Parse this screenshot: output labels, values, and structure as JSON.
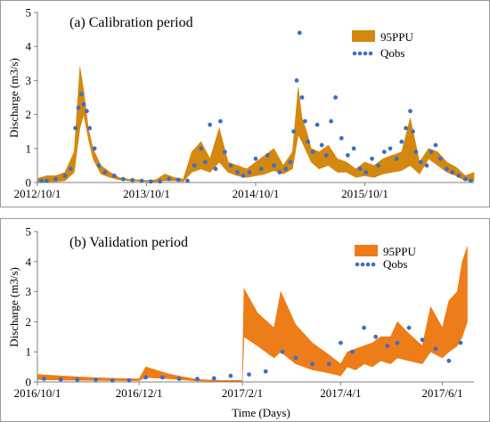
{
  "chart_data": [
    {
      "type": "area",
      "title": "(a) Calibration period",
      "ylabel": "Discharge (m3/s)",
      "xlabel": "",
      "ylim": [
        0,
        5
      ],
      "yticks": [
        "0",
        "1",
        "2",
        "3",
        "4",
        "5"
      ],
      "xlim": [
        "2012-10-01",
        "2016-09-30"
      ],
      "xtick_labels": [
        "2012/10/1",
        "2013/10/1",
        "2014/10/1",
        "2015/10/1"
      ],
      "xtick_dates": [
        "2012-10-01",
        "2013-10-01",
        "2014-10-01",
        "2015-10-01"
      ],
      "legend_position": "top-right",
      "grid": false,
      "series": [
        {
          "name": "95PPU",
          "kind": "band",
          "color": "#d4880f",
          "dates": [
            "2012-10-01",
            "2012-11-01",
            "2012-12-01",
            "2013-01-01",
            "2013-02-01",
            "2013-02-20",
            "2013-03-05",
            "2013-03-20",
            "2013-04-05",
            "2013-05-01",
            "2013-06-01",
            "2013-07-01",
            "2013-08-01",
            "2013-09-01",
            "2013-10-01",
            "2013-11-01",
            "2013-12-01",
            "2014-01-01",
            "2014-02-01",
            "2014-03-01",
            "2014-04-01",
            "2014-05-01",
            "2014-06-01",
            "2014-07-01",
            "2014-08-01",
            "2014-09-01",
            "2014-10-01",
            "2014-11-01",
            "2014-12-01",
            "2015-01-01",
            "2015-02-01",
            "2015-02-20",
            "2015-03-05",
            "2015-03-20",
            "2015-04-05",
            "2015-05-01",
            "2015-06-01",
            "2015-07-01",
            "2015-08-01",
            "2015-09-01",
            "2015-10-01",
            "2015-11-01",
            "2015-12-01",
            "2016-01-01",
            "2016-02-01",
            "2016-03-01",
            "2016-04-01",
            "2016-05-01",
            "2016-06-01",
            "2016-07-01",
            "2016-08-01",
            "2016-09-01",
            "2016-09-30"
          ],
          "lower": [
            0.02,
            0.02,
            0.03,
            0.05,
            0.3,
            1.6,
            2.0,
            1.3,
            0.7,
            0.25,
            0.15,
            0.08,
            0.05,
            0.04,
            0.03,
            0.02,
            0.05,
            0.05,
            0.03,
            0.3,
            0.4,
            0.3,
            0.6,
            0.3,
            0.2,
            0.15,
            0.2,
            0.25,
            0.35,
            0.25,
            0.4,
            1.4,
            1.2,
            0.9,
            0.6,
            0.4,
            0.5,
            0.3,
            0.3,
            0.15,
            0.2,
            0.15,
            0.25,
            0.3,
            0.35,
            0.5,
            0.25,
            0.7,
            0.5,
            0.3,
            0.2,
            0.05,
            0.05
          ],
          "upper": [
            0.12,
            0.2,
            0.2,
            0.3,
            0.9,
            3.4,
            2.7,
            1.6,
            1.0,
            0.5,
            0.3,
            0.15,
            0.1,
            0.08,
            0.06,
            0.08,
            0.25,
            0.15,
            0.1,
            0.9,
            1.2,
            0.7,
            1.6,
            0.6,
            0.5,
            0.4,
            0.6,
            0.8,
            1.0,
            0.5,
            0.9,
            2.8,
            1.9,
            1.5,
            1.0,
            0.9,
            1.1,
            0.7,
            0.6,
            0.4,
            0.6,
            0.5,
            0.7,
            0.8,
            0.9,
            1.9,
            0.6,
            1.0,
            0.9,
            0.6,
            0.45,
            0.2,
            0.3
          ]
        },
        {
          "name": "Qobs",
          "kind": "points",
          "color": "#3b6fc4",
          "dates": [
            "2012-10-15",
            "2012-11-01",
            "2012-12-01",
            "2013-01-01",
            "2013-01-20",
            "2013-02-05",
            "2013-02-15",
            "2013-02-25",
            "2013-03-05",
            "2013-03-15",
            "2013-03-25",
            "2013-04-10",
            "2013-04-25",
            "2013-05-15",
            "2013-06-15",
            "2013-07-15",
            "2013-08-15",
            "2013-09-15",
            "2013-10-15",
            "2013-11-15",
            "2013-12-15",
            "2014-01-15",
            "2014-02-15",
            "2014-03-10",
            "2014-04-01",
            "2014-04-15",
            "2014-05-01",
            "2014-05-20",
            "2014-06-05",
            "2014-06-20",
            "2014-07-10",
            "2014-08-01",
            "2014-08-20",
            "2014-09-10",
            "2014-10-01",
            "2014-10-20",
            "2014-11-10",
            "2014-12-01",
            "2014-12-20",
            "2015-01-10",
            "2015-01-25",
            "2015-02-05",
            "2015-02-15",
            "2015-02-25",
            "2015-03-05",
            "2015-03-15",
            "2015-03-25",
            "2015-04-10",
            "2015-04-25",
            "2015-05-10",
            "2015-05-25",
            "2015-06-10",
            "2015-06-25",
            "2015-07-15",
            "2015-08-05",
            "2015-08-25",
            "2015-09-15",
            "2015-10-05",
            "2015-10-25",
            "2015-11-15",
            "2015-12-05",
            "2015-12-25",
            "2016-01-15",
            "2016-02-01",
            "2016-02-15",
            "2016-03-01",
            "2016-03-10",
            "2016-03-20",
            "2016-04-05",
            "2016-04-25",
            "2016-05-10",
            "2016-05-25",
            "2016-06-10",
            "2016-07-01",
            "2016-07-20",
            "2016-08-10",
            "2016-09-01",
            "2016-09-20"
          ],
          "values": [
            0.05,
            0.05,
            0.1,
            0.2,
            0.4,
            1.6,
            2.2,
            2.6,
            2.3,
            2.1,
            1.6,
            1.0,
            0.5,
            0.3,
            0.2,
            0.1,
            0.07,
            0.05,
            0.03,
            0.03,
            0.1,
            0.08,
            0.05,
            0.5,
            1.0,
            0.6,
            1.7,
            0.4,
            1.8,
            0.9,
            0.5,
            0.3,
            0.2,
            0.3,
            0.7,
            0.4,
            0.8,
            0.5,
            0.3,
            0.4,
            0.6,
            1.5,
            3.0,
            4.4,
            2.5,
            1.8,
            1.2,
            0.9,
            1.7,
            1.1,
            0.8,
            1.8,
            2.5,
            1.3,
            0.8,
            1.0,
            0.4,
            0.3,
            0.7,
            0.5,
            0.9,
            1.0,
            0.7,
            1.2,
            1.6,
            2.1,
            1.5,
            0.9,
            0.6,
            0.5,
            0.9,
            1.1,
            0.7,
            0.4,
            0.3,
            0.2,
            0.1,
            0.05
          ]
        }
      ]
    },
    {
      "type": "area",
      "title": "(b) Validation period",
      "ylabel": "Discharge (m3/s)",
      "xlabel": "Time (Days)",
      "ylim": [
        0,
        5
      ],
      "yticks": [
        "0",
        "1",
        "2",
        "3",
        "4",
        "5"
      ],
      "xlim": [
        "2016-10-01",
        "2017-06-20"
      ],
      "xtick_labels": [
        "2016/10/1",
        "2016/12/1",
        "2017/2/1",
        "2017/4/1",
        "2017/6/1"
      ],
      "xtick_dates": [
        "2016-10-01",
        "2016-12-01",
        "2017-02-01",
        "2017-04-01",
        "2017-06-01"
      ],
      "legend_position": "top-right",
      "grid": false,
      "series": [
        {
          "name": "95PPU",
          "kind": "band",
          "color": "#ed7d18",
          "dates": [
            "2016-10-01",
            "2016-10-15",
            "2016-11-01",
            "2016-11-15",
            "2016-12-01",
            "2016-12-05",
            "2016-12-20",
            "2017-01-05",
            "2017-01-20",
            "2017-02-01",
            "2017-02-02",
            "2017-02-10",
            "2017-02-20",
            "2017-02-24",
            "2017-03-05",
            "2017-03-15",
            "2017-03-25",
            "2017-04-01",
            "2017-04-05",
            "2017-04-10",
            "2017-04-15",
            "2017-04-20",
            "2017-04-25",
            "2017-05-01",
            "2017-05-05",
            "2017-05-12",
            "2017-05-20",
            "2017-05-25",
            "2017-06-01",
            "2017-06-05",
            "2017-06-10",
            "2017-06-13",
            "2017-06-16"
          ],
          "lower": [
            0.08,
            0.06,
            0.05,
            0.04,
            0.04,
            0.15,
            0.1,
            0.03,
            0.02,
            0.02,
            1.5,
            1.2,
            0.8,
            1.0,
            0.6,
            0.4,
            0.3,
            0.2,
            0.5,
            0.4,
            0.6,
            0.5,
            0.7,
            0.6,
            0.8,
            0.7,
            0.6,
            1.0,
            0.8,
            1.0,
            1.2,
            1.5,
            2.0
          ],
          "upper": [
            0.25,
            0.2,
            0.15,
            0.12,
            0.1,
            0.5,
            0.25,
            0.08,
            0.05,
            0.05,
            3.1,
            2.3,
            1.8,
            3.0,
            1.9,
            1.3,
            0.9,
            0.6,
            1.0,
            1.1,
            1.2,
            1.3,
            1.5,
            1.5,
            2.0,
            1.6,
            1.2,
            2.5,
            1.8,
            2.7,
            3.0,
            4.0,
            4.5
          ]
        },
        {
          "name": "Qobs",
          "kind": "points",
          "color": "#3b6fc4",
          "dates": [
            "2016-10-05",
            "2016-10-15",
            "2016-10-25",
            "2016-11-05",
            "2016-11-15",
            "2016-11-25",
            "2016-12-05",
            "2016-12-15",
            "2016-12-25",
            "2017-01-05",
            "2017-01-15",
            "2017-01-25",
            "2017-02-05",
            "2017-02-15",
            "2017-02-25",
            "2017-03-05",
            "2017-03-15",
            "2017-03-25",
            "2017-04-01",
            "2017-04-08",
            "2017-04-15",
            "2017-04-22",
            "2017-04-29",
            "2017-05-05",
            "2017-05-12",
            "2017-05-20",
            "2017-05-28",
            "2017-06-05",
            "2017-06-12"
          ],
          "values": [
            0.1,
            0.08,
            0.07,
            0.07,
            0.05,
            0.05,
            0.15,
            0.15,
            0.1,
            0.1,
            0.12,
            0.2,
            0.25,
            0.35,
            1.0,
            0.8,
            0.6,
            0.6,
            1.3,
            1.0,
            1.8,
            1.5,
            1.2,
            1.3,
            1.8,
            1.4,
            1.1,
            0.7,
            1.3
          ]
        }
      ]
    }
  ]
}
